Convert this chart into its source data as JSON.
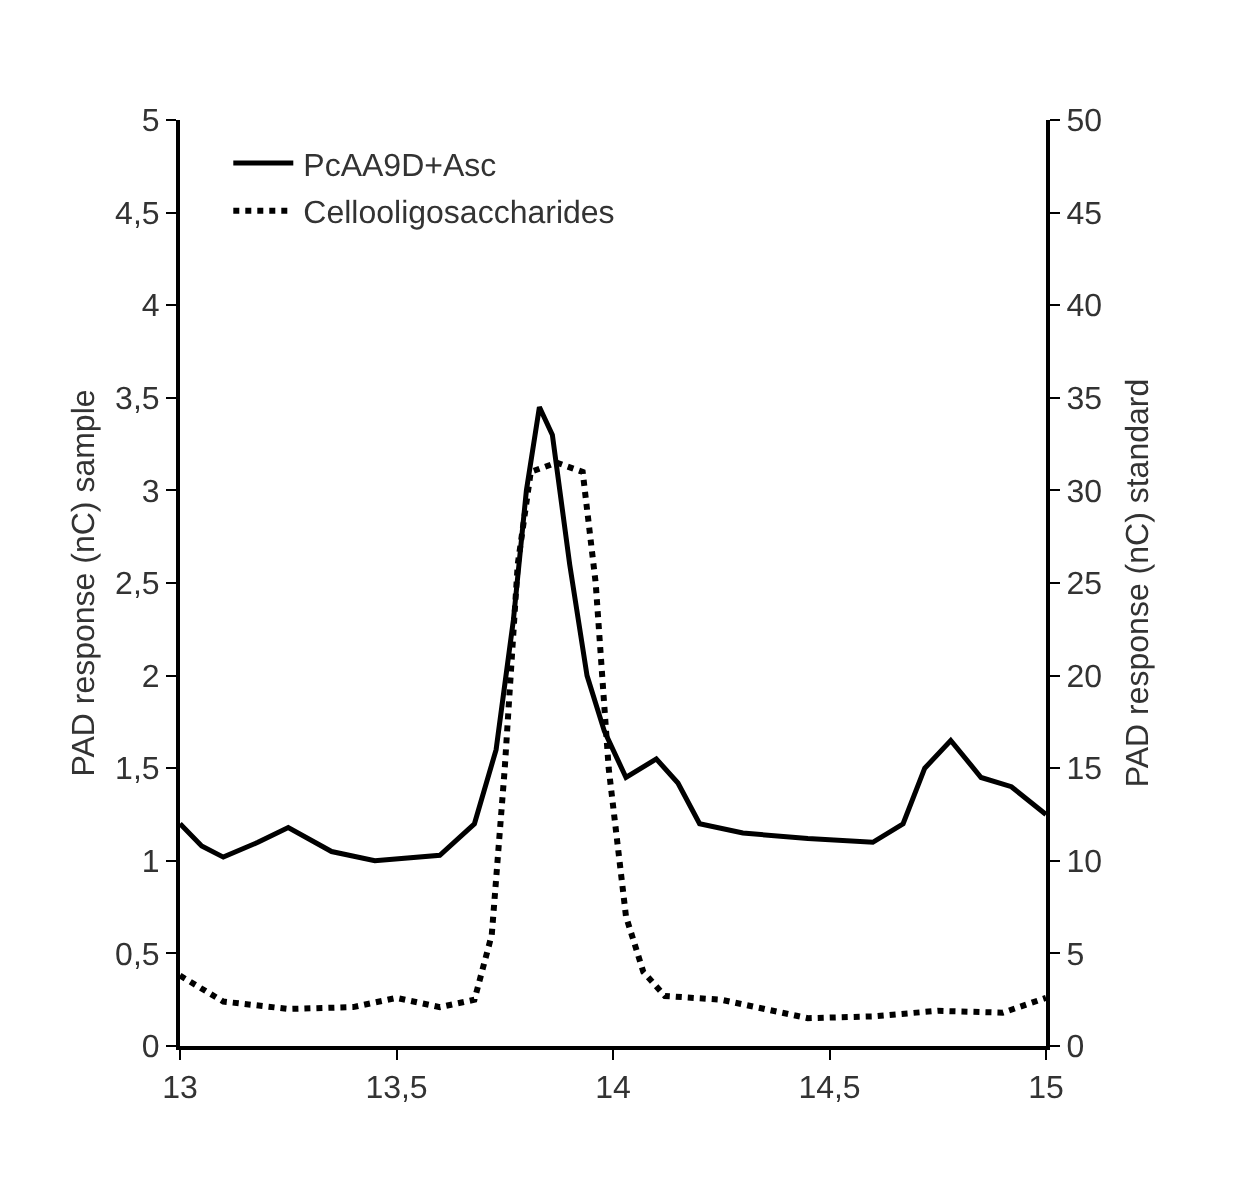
{
  "chart_data": {
    "type": "line",
    "ylabel": "PAD response (nC) sample",
    "y2label": "PAD response (nC) standard",
    "xlim": [
      13,
      15
    ],
    "xticks": [
      13,
      {
        "value": 13.5,
        "label": "13,5"
      },
      14,
      {
        "value": 14.5,
        "label": "14,5"
      },
      15
    ],
    "ylim": [
      0,
      5
    ],
    "yticks": [
      0,
      {
        "value": 0.5,
        "label": "0,5"
      },
      1,
      {
        "value": 1.5,
        "label": "1,5"
      },
      2,
      {
        "value": 2.5,
        "label": "2,5"
      },
      3,
      {
        "value": 3.5,
        "label": "3,5"
      },
      4,
      {
        "value": 4.5,
        "label": "4,5"
      },
      5
    ],
    "y2lim": [
      0,
      50
    ],
    "y2ticks": [
      0,
      5,
      10,
      15,
      20,
      25,
      30,
      35,
      40,
      45,
      50
    ],
    "grid": false,
    "legend": "top left",
    "marker": "none",
    "series": [
      {
        "name": "PcAA9D+Asc",
        "color": "#000000",
        "line_style": "solid",
        "x": [
          13,
          13.05,
          13.1,
          13.18,
          13.25,
          13.35,
          13.45,
          13.6,
          13.68,
          13.73,
          13.77,
          13.8,
          13.83,
          13.86,
          13.9,
          13.94,
          13.98,
          14.03,
          14.1,
          14.15,
          14.2,
          14.3,
          14.45,
          14.6,
          14.67,
          14.72,
          14.78,
          14.85,
          14.92,
          15
        ],
        "values": [
          1.2,
          1.08,
          1.02,
          1.1,
          1.18,
          1.05,
          1.0,
          1.03,
          1.2,
          1.6,
          2.3,
          3.0,
          3.45,
          3.3,
          2.6,
          2.0,
          1.7,
          1.45,
          1.55,
          1.42,
          1.2,
          1.15,
          1.12,
          1.1,
          1.2,
          1.5,
          1.65,
          1.45,
          1.4,
          1.25
        ]
      },
      {
        "name": "Cellooligosaccharides",
        "color": "#000000",
        "line_style": "dotted",
        "axis": "y2",
        "x": [
          13,
          13.1,
          13.25,
          13.4,
          13.5,
          13.6,
          13.68,
          13.72,
          13.75,
          13.78,
          13.81,
          13.87,
          13.93,
          13.96,
          13.99,
          14.03,
          14.07,
          14.12,
          14.25,
          14.35,
          14.45,
          14.6,
          14.75,
          14.9,
          15
        ],
        "values": [
          3.8,
          2.4,
          2.0,
          2.1,
          2.6,
          2.1,
          2.5,
          6,
          15,
          26,
          31,
          31.5,
          31,
          25,
          15,
          7,
          4,
          2.7,
          2.5,
          2.0,
          1.5,
          1.6,
          1.9,
          1.8,
          2.6
        ]
      }
    ]
  }
}
